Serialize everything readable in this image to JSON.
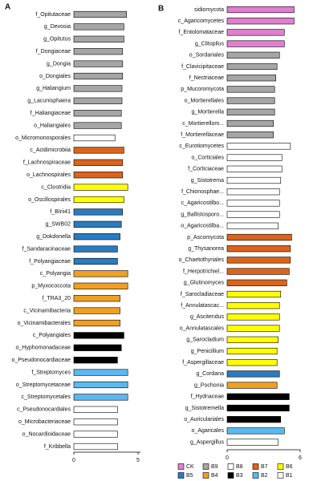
{
  "chart_data": [
    {
      "type": "bar",
      "orientation": "horizontal",
      "title": "A",
      "categories": [
        "f_Opitutaceae",
        "g_Devosia",
        "g_Opitutus",
        "f_Dongiaceae",
        "g_Dongia",
        "o_Dongiales",
        "g_Haliangium",
        "g_Lacunisphaera",
        "f_Haliangiaceae",
        "o_Haliangiales",
        "o_Micromonosporales",
        "c_Acidimicrobiia",
        "f_Lachnospiraceae",
        "o_Lachnospirales",
        "c_Clostridia",
        "o_Oscillospirales",
        "f_BIrii41",
        "g_SWB02",
        "g_Dokdonella",
        "f_Sandaracinaceae",
        "f_Polyangiaceae",
        "c_Polyangia",
        "p_Myxococcota",
        "f_TRA3_20",
        "c_Vicinamibacteria",
        "o_Vicinamibacterales",
        "c_Polyangiales",
        "o_Hyphomonadaceae",
        "o_Pseudonocardiaceae",
        "f_Streptomyces",
        "o_Streptomycetaceae",
        "c_Streptomycetales",
        "c_Pseudonocardiales",
        "o_Microbacteriaceae",
        "o_Nocardioidaceae",
        "f_Kribbella"
      ],
      "values": [
        4.1,
        3.9,
        3.9,
        3.8,
        3.8,
        3.8,
        3.75,
        3.75,
        3.7,
        3.7,
        3.2,
        3.9,
        3.8,
        3.8,
        4.2,
        3.9,
        3.8,
        3.7,
        3.6,
        3.4,
        3.4,
        4.2,
        4.2,
        3.6,
        3.6,
        3.6,
        3.9,
        3.7,
        3.4,
        4.2,
        4.2,
        4.2,
        3.4,
        3.4,
        3.4,
        3.4
      ],
      "colors": [
        "#a6a6a6",
        "#a6a6a6",
        "#a6a6a6",
        "#a6a6a6",
        "#a6a6a6",
        "#a6a6a6",
        "#a6a6a6",
        "#a6a6a6",
        "#a6a6a6",
        "#a6a6a6",
        "#ffffff",
        "#d9651c",
        "#d9651c",
        "#d9651c",
        "#ffff00",
        "#ffff00",
        "#2b7bbf",
        "#2b7bbf",
        "#2b7bbf",
        "#2b7bbf",
        "#2b7bbf",
        "#f0a020",
        "#f0a020",
        "#f0a020",
        "#f0a020",
        "#f0a020",
        "#000000",
        "#000000",
        "#000000",
        "#5bb8f0",
        "#5bb8f0",
        "#5bb8f0",
        "#ffffff",
        "#ffffff",
        "#ffffff",
        "#ffffff"
      ],
      "xlim": [
        0,
        5.2
      ],
      "xticks": [
        0,
        5
      ]
    },
    {
      "type": "bar",
      "orientation": "horizontal",
      "title": "B",
      "categories": [
        "sidiomycota",
        "c_Agaricomycetes",
        "f_Entolomataceae",
        "g_Clitopilus",
        "o_Sordariales",
        "f_Clavicipitaceae",
        "f_Nectriaceae",
        "p_Mucoromycota",
        "o_Mortierellales",
        "g_Mortierella",
        "c_Mortierellom...",
        "f_Mortierellaceae",
        "c_Eurotiomycetes",
        "o_Corticiales",
        "f_Corticiaceae",
        "g_Sistotrema",
        "f_Chionosphae...",
        "c_Agaricostilbo...",
        "g_Ballistosporo...",
        "o_Agaricostilba...",
        "p_Ascomycota",
        "g_Thysanorea",
        "o_Chaetothyriales",
        "f_Herpotrichiel...",
        "g_Glutinomyces",
        "f_Sarocladiaceae",
        "f_Annulatascac...",
        "g_Ascitendus",
        "o_Annulatascales",
        "g_Sarocladium",
        "g_Penicillium",
        "f_Aspergillaceae",
        "g_Cordana",
        "g_Pochonia",
        "f_Hydnaceae",
        "g_Sistotremella",
        "o_Auriculariales",
        "o_Agaricales",
        "g_Aspergillus"
      ],
      "values": [
        5.5,
        5.5,
        4.7,
        4.7,
        4.3,
        4.1,
        4.0,
        3.9,
        3.9,
        3.9,
        3.8,
        3.8,
        5.2,
        4.5,
        4.5,
        4.4,
        4.3,
        4.3,
        4.3,
        4.2,
        5.3,
        5.2,
        5.2,
        5.1,
        4.9,
        4.4,
        4.3,
        4.3,
        4.3,
        4.2,
        4.1,
        4.1,
        4.3,
        4.1,
        5.1,
        5.1,
        4.4,
        4.7,
        4.2
      ],
      "colors": [
        "#e07fd0",
        "#e07fd0",
        "#e07fd0",
        "#e07fd0",
        "#a6a6a6",
        "#a6a6a6",
        "#a6a6a6",
        "#a6a6a6",
        "#a6a6a6",
        "#a6a6a6",
        "#a6a6a6",
        "#a6a6a6",
        "#ffffff",
        "#ffffff",
        "#ffffff",
        "#ffffff",
        "#ffffff",
        "#ffffff",
        "#ffffff",
        "#ffffff",
        "#d9651c",
        "#d9651c",
        "#d9651c",
        "#d9651c",
        "#d9651c",
        "#ffff00",
        "#ffff00",
        "#ffff00",
        "#ffff00",
        "#ffff00",
        "#ffff00",
        "#ffff00",
        "#2b7bbf",
        "#f0a020",
        "#000000",
        "#000000",
        "#000000",
        "#5bb8f0",
        "#ffffff"
      ],
      "xlim": [
        0,
        6
      ],
      "xticks": [
        0,
        6
      ],
      "legend": [
        {
          "name": "CK",
          "color": "#e07fd0"
        },
        {
          "name": "B9",
          "color": "#a6a6a6"
        },
        {
          "name": "B8",
          "color": "#ffffff"
        },
        {
          "name": "B7",
          "color": "#d9651c"
        },
        {
          "name": "B6",
          "color": "#ffff00"
        },
        {
          "name": "B5",
          "color": "#2b7bbf"
        },
        {
          "name": "B4",
          "color": "#f0a020"
        },
        {
          "name": "B3",
          "color": "#000000"
        },
        {
          "name": "B2",
          "color": "#5bb8f0"
        },
        {
          "name": "B1",
          "color": "#ffffff"
        }
      ]
    }
  ]
}
